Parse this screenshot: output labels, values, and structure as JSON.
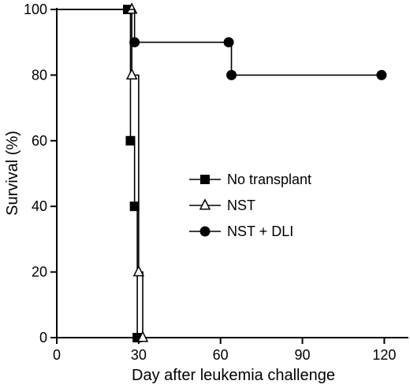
{
  "chart_data": {
    "type": "line",
    "style": "kaplan-meier step survival curves",
    "xlabel": "Day after leukemia challenge",
    "ylabel": "Survival (%)",
    "xlim": [
      0,
      130
    ],
    "ylim": [
      0,
      100
    ],
    "xticks": [
      0,
      30,
      60,
      90,
      120
    ],
    "yticks": [
      0,
      20,
      40,
      60,
      80,
      100
    ],
    "grid": false,
    "legend_position": "center-right",
    "series": [
      {
        "name": "No transplant",
        "marker": "filled-square",
        "color": "#000000",
        "x": [
          0,
          26,
          27,
          28.5,
          29.5
        ],
        "y": [
          100,
          100,
          60,
          40,
          0
        ]
      },
      {
        "name": "NST",
        "marker": "open-triangle",
        "color": "#000000",
        "x": [
          0,
          27.5,
          27.5,
          30,
          31.5
        ],
        "y": [
          100,
          100,
          80,
          20,
          0
        ]
      },
      {
        "name": "NST + DLI",
        "marker": "filled-circle",
        "color": "#000000",
        "x": [
          0,
          28.5,
          63,
          64,
          119
        ],
        "y": [
          100,
          90,
          90,
          80,
          80
        ]
      }
    ]
  }
}
